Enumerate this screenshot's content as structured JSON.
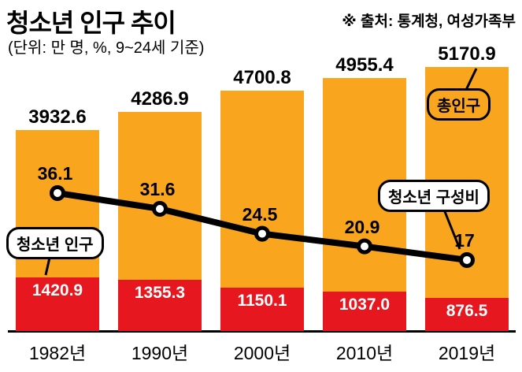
{
  "header": {
    "title": "청소년 인구 추이",
    "subtitle": "(단위: 만 명, %, 9~24세 기준)",
    "source": "※ 출처: 통계청, 여성가족부"
  },
  "annotations": {
    "youth_population_label": "청소년 인구",
    "total_population_label": "총인구",
    "youth_ratio_label": "청소년 구성비"
  },
  "colors": {
    "total_bar": "#F9A51E",
    "youth_bar": "#E7171F",
    "line": "#000000",
    "marker_fill": "#FFFFFF",
    "text": "#000000"
  },
  "chart_data": {
    "type": "bar+line",
    "title": "청소년 인구 추이",
    "unit": "만 명, %, 9~24세 기준",
    "source": "통계청, 여성가족부",
    "categories": [
      "1982년",
      "1990년",
      "2000년",
      "2010년",
      "2019년"
    ],
    "series": [
      {
        "name": "총인구",
        "type": "bar",
        "color": "#F9A51E",
        "values": [
          3932.6,
          4286.9,
          4700.8,
          4955.4,
          5170.9
        ],
        "labels": [
          "3932.6",
          "4286.9",
          "4700.8",
          "4955.4",
          "5170.9"
        ]
      },
      {
        "name": "청소년 인구",
        "type": "bar",
        "color": "#E7171F",
        "values": [
          1420.9,
          1355.3,
          1150.1,
          1037.0,
          876.5
        ],
        "labels": [
          "1420.9",
          "1355.3",
          "1150.1",
          "1037.0",
          "876.5"
        ]
      },
      {
        "name": "청소년 구성비",
        "type": "line",
        "color": "#000000",
        "values": [
          36.1,
          31.6,
          24.5,
          20.9,
          17
        ],
        "labels": [
          "36.1",
          "31.6",
          "24.5",
          "20.9",
          "17"
        ]
      }
    ],
    "legend_position": "callouts",
    "grid": false
  }
}
